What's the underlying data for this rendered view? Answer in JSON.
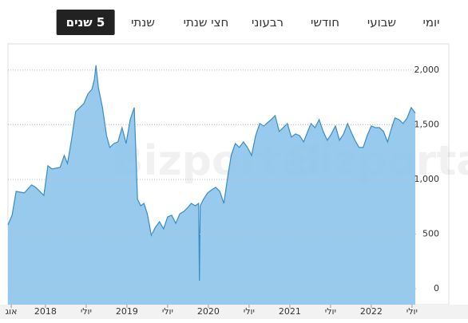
{
  "tabs": [
    "יומי",
    "שבועי",
    "חודשי",
    "רבעוני",
    "חצי שנתי",
    "שנתי",
    "5 שנים"
  ],
  "chart_data": {
    "type": "area",
    "watermark": "Bizportal",
    "x": [
      2017.54,
      2017.59,
      2017.64,
      2017.74,
      2017.83,
      2017.88,
      2017.98,
      2018.03,
      2018.08,
      2018.18,
      2018.23,
      2018.27,
      2018.32,
      2018.37,
      2018.42,
      2018.47,
      2018.52,
      2018.57,
      2018.6,
      2018.62,
      2018.65,
      2018.7,
      2018.75,
      2018.79,
      2018.84,
      2018.89,
      2018.94,
      2018.99,
      2019.04,
      2019.09,
      2019.13,
      2019.17,
      2019.21,
      2019.25,
      2019.3,
      2019.35,
      2019.4,
      2019.45,
      2019.5,
      2019.55,
      2019.6,
      2019.65,
      2019.7,
      2019.75,
      2019.79,
      2019.84,
      2019.88,
      2019.89,
      2019.9,
      2019.94,
      2019.99,
      2020.04,
      2020.09,
      2020.14,
      2020.19,
      2020.24,
      2020.28,
      2020.33,
      2020.38,
      2020.43,
      2020.48,
      2020.53,
      2020.58,
      2020.63,
      2020.68,
      2020.77,
      2020.82,
      2020.87,
      2020.92,
      2020.97,
      2021.02,
      2021.07,
      2021.12,
      2021.17,
      2021.22,
      2021.26,
      2021.31,
      2021.36,
      2021.41,
      2021.46,
      2021.51,
      2021.56,
      2021.61,
      2021.66,
      2021.71,
      2021.75,
      2021.8,
      2021.85,
      2021.9,
      2021.95,
      2022.0,
      2022.05,
      2022.1,
      2022.15,
      2022.2,
      2022.25,
      2022.29,
      2022.34,
      2022.39,
      2022.44,
      2022.49,
      2022.54
    ],
    "values": [
      584,
      672,
      890,
      876,
      949,
      927,
      854,
      1124,
      1095,
      1110,
      1219,
      1146,
      1365,
      1620,
      1657,
      1693,
      1781,
      1825,
      1912,
      2044,
      1839,
      1657,
      1401,
      1292,
      1328,
      1343,
      1474,
      1328,
      1547,
      1657,
      818,
      759,
      781,
      686,
      489,
      562,
      613,
      547,
      657,
      672,
      599,
      686,
      708,
      745,
      781,
      759,
      781,
      73,
      759,
      818,
      876,
      905,
      927,
      890,
      781,
      1036,
      1219,
      1328,
      1292,
      1343,
      1292,
      1219,
      1401,
      1511,
      1489,
      1547,
      1584,
      1438,
      1474,
      1511,
      1387,
      1416,
      1401,
      1343,
      1438,
      1511,
      1474,
      1547,
      1438,
      1358,
      1416,
      1489,
      1358,
      1416,
      1511,
      1438,
      1358,
      1292,
      1292,
      1401,
      1489,
      1474,
      1474,
      1438,
      1343,
      1474,
      1562,
      1547,
      1511,
      1562,
      1657,
      1606
    ],
    "color": "#3a8cc4",
    "fill": "#8cc4ea",
    "xlim": [
      2017.54,
      2022.56
    ],
    "ylim": [
      -146,
      2240
    ],
    "xticks": [
      {
        "value": 2017.58,
        "label": "אוג"
      },
      2018,
      {
        "value": 2018.5,
        "label": "יולי"
      },
      2019,
      {
        "value": 2019.5,
        "label": "יולי"
      },
      2020,
      {
        "value": 2020.5,
        "label": "יולי"
      },
      2021,
      {
        "value": 2021.5,
        "label": "יולי"
      },
      2022,
      {
        "value": 2022.5,
        "label": "יולי"
      }
    ],
    "yticks": [
      0,
      500,
      {
        "value": 1000,
        "label": "1,000"
      },
      {
        "value": 1500,
        "label": "1,500"
      },
      {
        "value": 2000,
        "label": "2,000"
      }
    ],
    "grid": true
  }
}
